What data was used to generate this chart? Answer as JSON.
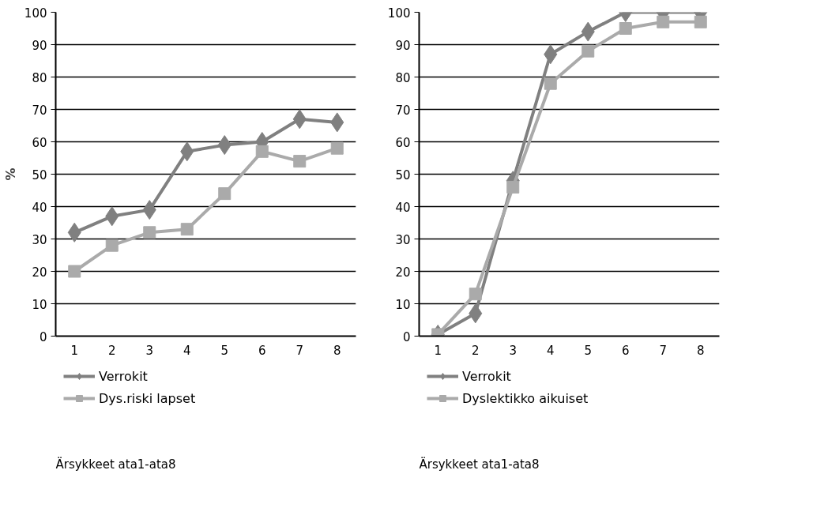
{
  "chart_data": [
    {
      "type": "line",
      "categories": [
        "1",
        "2",
        "3",
        "4",
        "5",
        "6",
        "7",
        "8"
      ],
      "ylabel": "%",
      "ylim": [
        0,
        100
      ],
      "yticks": [
        0,
        10,
        20,
        30,
        40,
        50,
        60,
        70,
        80,
        90,
        100
      ],
      "grid": "y",
      "legend": "bottom",
      "series": [
        {
          "name": "Verrokit",
          "color": "#808080",
          "marker": "diamond",
          "values": [
            32,
            37,
            39,
            57,
            59,
            60,
            67,
            66
          ]
        },
        {
          "name": "Dys.riski lapset",
          "color": "#aaaaaa",
          "marker": "square",
          "values": [
            20,
            28,
            32,
            33,
            44,
            57,
            54,
            58
          ]
        }
      ],
      "annotations": [
        "Ärsykkeet ata1-ata8"
      ]
    },
    {
      "type": "line",
      "categories": [
        "1",
        "2",
        "3",
        "4",
        "5",
        "6",
        "7",
        "8"
      ],
      "ylim": [
        0,
        100
      ],
      "yticks": [
        0,
        10,
        20,
        30,
        40,
        50,
        60,
        70,
        80,
        90,
        100
      ],
      "grid": "y",
      "legend": "bottom",
      "series": [
        {
          "name": "Verrokit",
          "color": "#808080",
          "marker": "diamond",
          "values": [
            0.5,
            7,
            48,
            87,
            94,
            100,
            100,
            100
          ]
        },
        {
          "name": "Dyslektikko aikuiset",
          "color": "#aaaaaa",
          "marker": "square",
          "values": [
            0.5,
            13,
            46,
            78,
            88,
            95,
            97,
            97
          ]
        }
      ],
      "annotations": [
        "Ärsykkeet ata1-ata8"
      ]
    }
  ]
}
